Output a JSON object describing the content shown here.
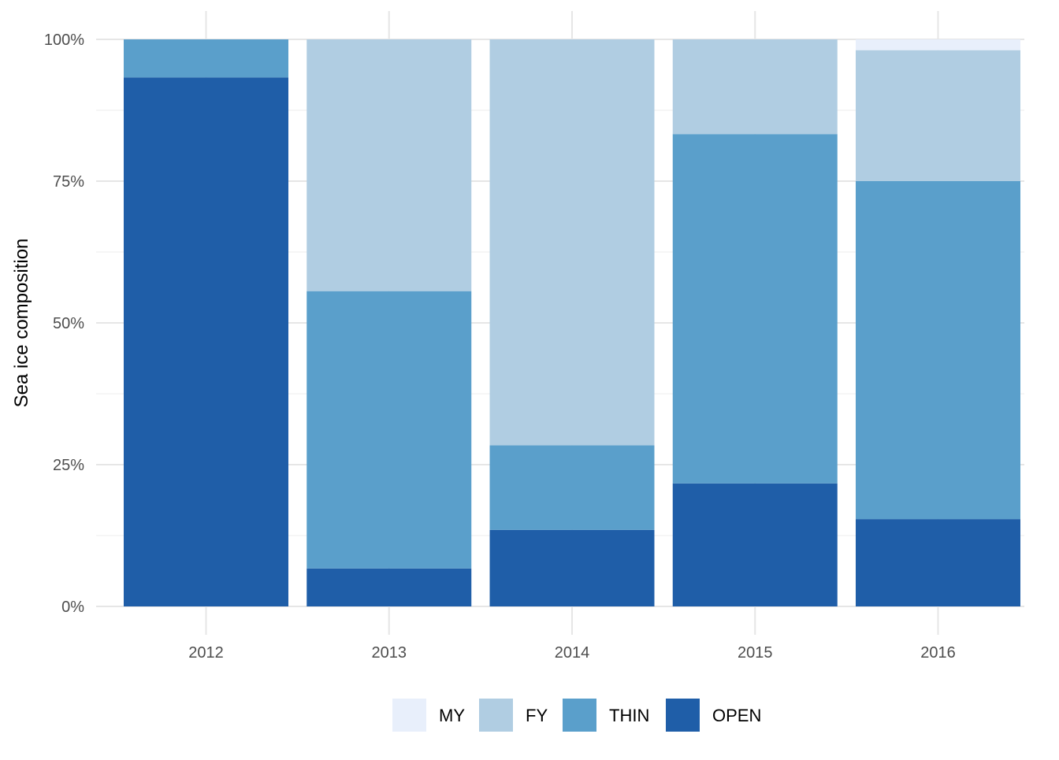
{
  "chart_data": {
    "type": "bar",
    "stacked": true,
    "position": "fill",
    "categories": [
      "2012",
      "2013",
      "2014",
      "2015",
      "2016"
    ],
    "series": [
      {
        "name": "OPEN",
        "color": "#1f5ea8",
        "values": [
          93.3,
          6.7,
          13.5,
          21.7,
          15.4
        ]
      },
      {
        "name": "THIN",
        "color": "#5a9fcb",
        "values": [
          6.7,
          48.9,
          14.9,
          61.6,
          59.6
        ]
      },
      {
        "name": "FY",
        "color": "#b0cde2",
        "values": [
          0.0,
          44.4,
          71.6,
          16.7,
          23.1
        ]
      },
      {
        "name": "MY",
        "color": "#e8effb",
        "values": [
          0.0,
          0.0,
          0.0,
          0.0,
          1.9
        ]
      }
    ],
    "legend_order": [
      "MY",
      "FY",
      "THIN",
      "OPEN"
    ],
    "xlabel": "",
    "ylabel": "Sea ice composition",
    "ylim": [
      0,
      100
    ],
    "yticks": [
      0,
      25,
      50,
      75,
      100
    ],
    "ytick_labels": [
      "0%",
      "25%",
      "50%",
      "75%",
      "100%"
    ],
    "grid": true,
    "legend_position": "bottom"
  }
}
